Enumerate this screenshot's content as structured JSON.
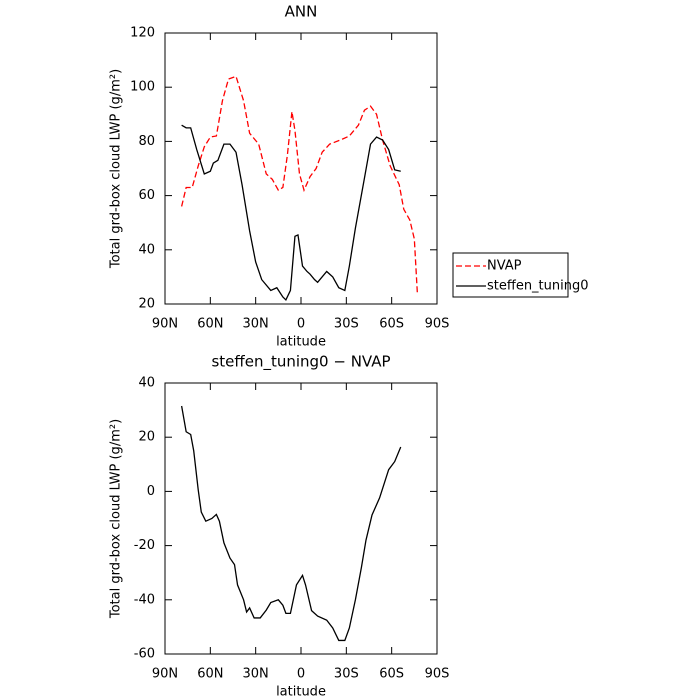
{
  "chart_data": [
    {
      "type": "line",
      "title": "ANN",
      "x_label": "latitude",
      "y_label": "Total grd-box cloud LWP (g/m²)",
      "xlim": [
        90,
        -90
      ],
      "xticks": [
        {
          "value": 90,
          "label": "90N"
        },
        {
          "value": 60,
          "label": "60N"
        },
        {
          "value": 30,
          "label": "30N"
        },
        0,
        {
          "value": -30,
          "label": "30S"
        },
        {
          "value": -60,
          "label": "60S"
        },
        {
          "value": -90,
          "label": "90S"
        }
      ],
      "ylim": [
        20,
        120
      ],
      "yticks": [
        20,
        40,
        60,
        80,
        100,
        120
      ],
      "legend": "right",
      "series": [
        {
          "name": "NVAP",
          "color": "#ff0000",
          "line_style": "dashed",
          "x": [
            79,
            76,
            72,
            68,
            64,
            60,
            56,
            52,
            48,
            43,
            38,
            34,
            28,
            23,
            19,
            15,
            12,
            9,
            6,
            4,
            1,
            -2,
            -6,
            -10,
            -14,
            -19,
            -26,
            -32,
            -38,
            -42,
            -46,
            -50,
            -54,
            -59,
            -65,
            -68,
            -72,
            -75,
            -77
          ],
          "values": [
            56,
            63,
            63,
            71,
            78,
            81.6,
            82,
            95,
            103,
            104,
            95,
            83,
            79,
            68,
            66,
            62,
            63,
            75,
            91,
            84,
            68,
            62,
            67,
            70,
            76,
            79,
            80.5,
            82,
            86,
            91.5,
            93,
            90,
            80.5,
            71,
            64,
            55,
            51,
            44,
            24
          ]
        },
        {
          "name": "steffen_tuning0",
          "color": "#000000",
          "line_style": "solid",
          "x": [
            79,
            76,
            73,
            69,
            64,
            60,
            58,
            55,
            51,
            47,
            43,
            39,
            34,
            30,
            26,
            20,
            16,
            12,
            10,
            7,
            4,
            2,
            -1,
            -4,
            -6,
            -9,
            -11,
            -17,
            -21,
            -25,
            -29,
            -32,
            -36,
            -42,
            -46,
            -50,
            -54,
            -58,
            -62,
            -66
          ],
          "values": [
            86,
            85,
            85,
            77,
            68,
            69,
            72,
            73,
            79,
            79,
            76,
            64,
            47,
            35.5,
            29,
            25,
            26,
            22.6,
            21.5,
            25,
            45,
            45.5,
            34,
            32,
            31,
            29,
            28,
            32,
            30,
            26,
            25,
            34,
            48,
            66.5,
            79,
            81.6,
            80.5,
            77,
            69.5,
            69
          ]
        }
      ]
    },
    {
      "type": "line",
      "title": "steffen_tuning0 − NVAP",
      "x_label": "latitude",
      "y_label": "Total grd-box cloud LWP (g/m²)",
      "xlim": [
        90,
        -90
      ],
      "xticks": [
        {
          "value": 90,
          "label": "90N"
        },
        {
          "value": 60,
          "label": "60N"
        },
        {
          "value": 30,
          "label": "30N"
        },
        0,
        {
          "value": -30,
          "label": "30S"
        },
        {
          "value": -60,
          "label": "60S"
        },
        {
          "value": -90,
          "label": "90S"
        }
      ],
      "ylim": [
        -60,
        40
      ],
      "yticks": [
        -60,
        -40,
        -20,
        0,
        20,
        40
      ],
      "series": [
        {
          "color": "#000000",
          "line_style": "solid",
          "x": [
            79,
            76,
            73,
            71,
            68,
            66,
            63,
            59,
            56,
            54,
            51,
            47,
            44,
            42,
            38,
            36,
            34,
            31,
            27,
            23,
            20,
            15,
            12,
            10,
            7,
            3,
            -1,
            -3,
            -7,
            -11,
            -17,
            -21,
            -25,
            -29,
            -32,
            -36,
            -40,
            -43,
            -47,
            -52,
            -58,
            -62,
            -66
          ],
          "values": [
            31.5,
            22,
            21,
            15,
            0.5,
            -7.6,
            -11,
            -10,
            -8.5,
            -11,
            -19,
            -24.6,
            -27,
            -34.5,
            -40,
            -44.5,
            -43,
            -46.7,
            -46.7,
            -43.8,
            -41,
            -40,
            -42,
            -45,
            -45,
            -34.5,
            -31,
            -34.5,
            -44,
            -46,
            -47.5,
            -50.4,
            -55,
            -55,
            -50.4,
            -40,
            -28,
            -18,
            -8.7,
            -2.4,
            8,
            11,
            16.4
          ]
        }
      ]
    }
  ]
}
